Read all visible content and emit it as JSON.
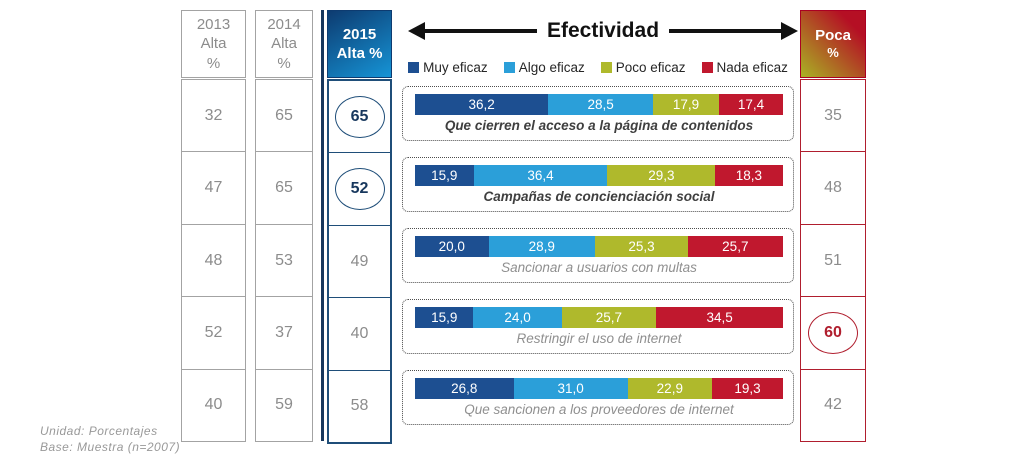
{
  "chart_data": {
    "type": "bar",
    "orientation": "horizontal-stacked",
    "title": "Efectividad",
    "units": "percent",
    "xlim": [
      0,
      100
    ],
    "legend_position": "top",
    "categories": [
      "Que cierren el acceso a la página de contenidos",
      "Campañas de concienciación social",
      "Sancionar a usuarios con multas",
      "Restringir el uso de internet",
      "Que sancionen a los proveedores de internet"
    ],
    "series": [
      {
        "name": "Muy eficaz",
        "color": "#1D4F91",
        "values": [
          36.2,
          15.9,
          20.0,
          15.9,
          26.8
        ]
      },
      {
        "name": "Algo eficaz",
        "color": "#2B9FD9",
        "values": [
          28.5,
          36.4,
          28.9,
          24.0,
          31.0
        ]
      },
      {
        "name": "Poco eficaz",
        "color": "#AFB92C",
        "values": [
          17.9,
          29.3,
          25.3,
          25.7,
          22.9
        ]
      },
      {
        "name": "Nada eficaz",
        "color": "#C0182E",
        "values": [
          17.4,
          18.3,
          25.7,
          34.5,
          19.3
        ]
      }
    ],
    "aux_columns": [
      {
        "name": "2013 Alta %",
        "values": [
          32,
          47,
          48,
          52,
          40
        ]
      },
      {
        "name": "2014 Alta %",
        "values": [
          65,
          65,
          53,
          37,
          59
        ]
      },
      {
        "name": "2015 Alta %",
        "values": [
          65,
          52,
          49,
          40,
          58
        ],
        "circled_values": [
          65,
          52
        ]
      },
      {
        "name": "Poca %",
        "values": [
          35,
          48,
          51,
          60,
          42
        ],
        "circled_values": [
          60
        ]
      }
    ]
  },
  "left_table": {
    "columns": [
      {
        "id": "2013",
        "header_lines": [
          "2013",
          "Alta",
          "%"
        ],
        "values": [
          "32",
          "47",
          "48",
          "52",
          "40"
        ]
      },
      {
        "id": "2014",
        "header_lines": [
          "2014",
          "Alta",
          "%"
        ],
        "values": [
          "65",
          "65",
          "53",
          "37",
          "59"
        ]
      },
      {
        "id": "2015",
        "header_lines": [
          "2015",
          "Alta %"
        ],
        "values": [
          "65",
          "52",
          "49",
          "40",
          "58"
        ]
      }
    ]
  },
  "chart": {
    "title": "Efectividad",
    "legend": [
      {
        "label": "Muy eficaz",
        "color": "#1D4F91"
      },
      {
        "label": "Algo eficaz",
        "color": "#2B9FD9"
      },
      {
        "label": "Poco eficaz",
        "color": "#AFB92C"
      },
      {
        "label": "Nada eficaz",
        "color": "#C0182E"
      }
    ],
    "rows": [
      {
        "label": "Que cierren el acceso a la página de contenidos",
        "emphasis": true,
        "values": [
          36.2,
          28.5,
          17.9,
          17.4
        ],
        "display": [
          "36,2",
          "28,5",
          "17,9",
          "17,4"
        ]
      },
      {
        "label": "Campañas de concienciación social",
        "emphasis": true,
        "values": [
          15.9,
          36.4,
          29.3,
          18.3
        ],
        "display": [
          "15,9",
          "36,4",
          "29,3",
          "18,3"
        ]
      },
      {
        "label": "Sancionar a usuarios con multas",
        "emphasis": false,
        "values": [
          20.0,
          28.9,
          25.3,
          25.7
        ],
        "display": [
          "20,0",
          "28,9",
          "25,3",
          "25,7"
        ]
      },
      {
        "label": "Restringir el uso de internet",
        "emphasis": false,
        "values": [
          15.9,
          24.0,
          25.7,
          34.5
        ],
        "display": [
          "15,9",
          "24,0",
          "25,7",
          "34,5"
        ]
      },
      {
        "label": "Que sancionen a los proveedores de internet",
        "emphasis": false,
        "values": [
          26.8,
          31.0,
          22.9,
          19.3
        ],
        "display": [
          "26,8",
          "31,0",
          "22,9",
          "19,3"
        ]
      }
    ]
  },
  "poca": {
    "header_lines": [
      "Poca",
      "%"
    ],
    "values": [
      "35",
      "48",
      "51",
      "60",
      "42"
    ]
  },
  "footnote": {
    "line1": "Unidad: Porcentajes",
    "line2": "Base: Muestra (n=2007)"
  }
}
